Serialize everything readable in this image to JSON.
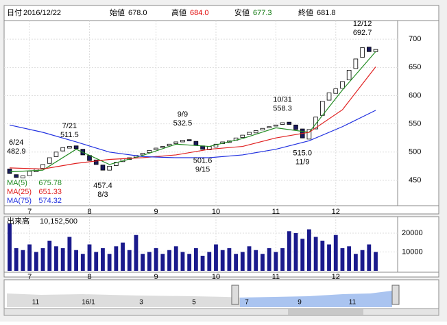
{
  "header": {
    "date_label": "日付",
    "date": "2016/12/22",
    "open_label": "始値",
    "open": "678.0",
    "high_label": "高値",
    "high": "684.0",
    "low_label": "安値",
    "low": "677.3",
    "close_label": "終値",
    "close": "681.8"
  },
  "chart_data": {
    "type": "candlestick",
    "open": [
      470,
      460,
      454,
      458,
      465,
      471,
      480,
      492,
      502,
      507,
      511,
      505,
      494,
      486,
      477,
      468,
      476,
      483,
      487,
      491,
      495,
      499,
      504,
      508,
      511,
      515,
      518,
      522,
      519,
      511,
      504,
      509,
      515,
      517,
      521,
      526,
      531,
      534,
      539,
      543,
      546,
      549,
      553,
      548,
      541,
      523,
      541,
      565,
      592,
      604,
      613,
      628,
      648,
      668,
      686,
      678
    ],
    "close": [
      462,
      455,
      458,
      466,
      470,
      478,
      490,
      500,
      508,
      510,
      506,
      495,
      485,
      478,
      468,
      475,
      482,
      488,
      490,
      494,
      498,
      503,
      507,
      510,
      514,
      518,
      521,
      520,
      512,
      505,
      510,
      514,
      518,
      520,
      525,
      530,
      535,
      538,
      542,
      545,
      548,
      552,
      549,
      540,
      525,
      540,
      562,
      590,
      605,
      612,
      625,
      645,
      665,
      685,
      678,
      681.8
    ],
    "xlim": [
      0,
      55
    ],
    "xticks": [
      {
        "value": 3,
        "label": "7"
      },
      {
        "value": 12,
        "label": "8"
      },
      {
        "value": 22,
        "label": "9"
      },
      {
        "value": 31,
        "label": "10"
      },
      {
        "value": 40,
        "label": "11"
      },
      {
        "value": 49,
        "label": "12"
      }
    ],
    "ylim": [
      405,
      733
    ],
    "yticks": [
      450,
      500,
      550,
      600,
      650,
      700
    ],
    "ma_x": [
      0,
      5,
      10,
      15,
      20,
      25,
      30,
      35,
      40,
      45,
      50,
      55
    ],
    "series": [
      {
        "name": "MA(5)",
        "color": "#228b22",
        "last": 675.78,
        "values": [
          465,
          468,
          505,
          478,
          494,
          514,
          510,
          524,
          543,
          535,
          610,
          678
        ]
      },
      {
        "name": "MA(25)",
        "color": "#e02020",
        "last": 651.33,
        "values": [
          472,
          470,
          480,
          487,
          490,
          495,
          505,
          510,
          525,
          535,
          575,
          651
        ]
      },
      {
        "name": "MA(75)",
        "color": "#2030e0",
        "last": 574.32,
        "values": [
          548,
          535,
          518,
          500,
          492,
          490,
          490,
          495,
          505,
          520,
          545,
          574
        ]
      }
    ],
    "annotations": [
      {
        "date": "6/24",
        "index": 1,
        "kind": "high",
        "value": 482.9
      },
      {
        "date": "7/21",
        "index": 9,
        "kind": "high",
        "value": 511.5
      },
      {
        "date": "8/3",
        "index": 14,
        "kind": "low",
        "value": 457.4
      },
      {
        "date": "9/9",
        "index": 26,
        "kind": "high",
        "value": 532.5
      },
      {
        "date": "9/15",
        "index": 29,
        "kind": "low",
        "value": 501.6
      },
      {
        "date": "10/31",
        "index": 41,
        "kind": "high",
        "value": 558.3
      },
      {
        "date": "11/9",
        "index": 44,
        "kind": "low",
        "value": {
          "value": 515,
          "label": "515.0"
        }
      },
      {
        "date": "12/12",
        "index": 53,
        "kind": "high",
        "value": 692.7
      }
    ]
  },
  "volume": {
    "title": "出来高",
    "last": "10,152,500",
    "ylim": [
      0,
      28000
    ],
    "yticks": [
      10000,
      20000
    ],
    "values": [
      25000,
      12000,
      11000,
      14000,
      10000,
      12000,
      16000,
      13000,
      12000,
      18000,
      11000,
      9000,
      14000,
      10000,
      12000,
      9000,
      13000,
      15000,
      11000,
      19000,
      9000,
      10000,
      12000,
      9000,
      11000,
      13000,
      10000,
      9000,
      12000,
      8000,
      10000,
      14000,
      11000,
      12000,
      9000,
      10000,
      13000,
      11000,
      9000,
      12000,
      10000,
      12000,
      21000,
      20000,
      17000,
      22000,
      18000,
      16000,
      14000,
      19000,
      12000,
      13000,
      9000,
      11000,
      14000,
      10000
    ]
  },
  "navigator": {
    "labels": [
      "11",
      "16/1",
      "3",
      "5",
      "7",
      "9",
      "11"
    ]
  }
}
